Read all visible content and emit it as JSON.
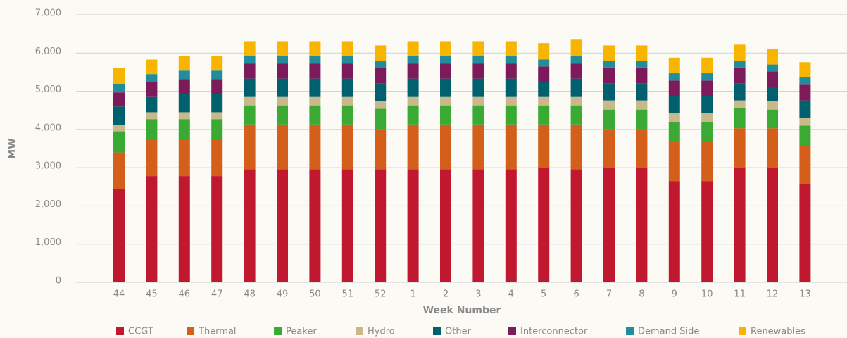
{
  "chart_data": {
    "type": "bar",
    "stacked": true,
    "ylabel": "MW",
    "xlabel": "Week Number",
    "categories": [
      "44",
      "45",
      "46",
      "47",
      "48",
      "49",
      "50",
      "51",
      "52",
      "1",
      "2",
      "3",
      "4",
      "5",
      "6",
      "7",
      "8",
      "9",
      "10",
      "11",
      "12",
      "13"
    ],
    "ylim": [
      0,
      7000
    ],
    "yticks": [
      0,
      {
        "value": 1000,
        "label": "1,000"
      },
      {
        "value": 2000,
        "label": "2,000"
      },
      {
        "value": 3000,
        "label": "3,000"
      },
      {
        "value": 4000,
        "label": "4,000"
      },
      {
        "value": 5000,
        "label": "5,000"
      },
      {
        "value": 6000,
        "label": "6,000"
      },
      {
        "value": 7000,
        "label": "7,000"
      }
    ],
    "grid": true,
    "legend": "bottom",
    "series": [
      {
        "name": "CCGT",
        "color": "#c0192f",
        "values": [
          2450,
          2780,
          2780,
          2780,
          2960,
          2960,
          2960,
          2960,
          2960,
          2960,
          2960,
          2960,
          2960,
          3000,
          2960,
          3000,
          3000,
          2650,
          2650,
          3000,
          3000,
          2570
        ]
      },
      {
        "name": "Thermal",
        "color": "#d35f1a",
        "values": [
          950,
          970,
          970,
          970,
          1170,
          1170,
          1170,
          1170,
          1040,
          1170,
          1170,
          1170,
          1170,
          1130,
          1170,
          1000,
          1000,
          1030,
          1030,
          1030,
          1030,
          990
        ]
      },
      {
        "name": "Peaker",
        "color": "#3aaa35",
        "values": [
          550,
          520,
          520,
          520,
          500,
          500,
          500,
          500,
          540,
          500,
          500,
          500,
          500,
          500,
          500,
          520,
          520,
          520,
          520,
          530,
          490,
          540
        ]
      },
      {
        "name": "Hydro",
        "color": "#c9b98a",
        "values": [
          170,
          180,
          180,
          180,
          220,
          220,
          220,
          220,
          200,
          220,
          220,
          220,
          220,
          220,
          220,
          240,
          240,
          220,
          220,
          200,
          220,
          200
        ]
      },
      {
        "name": "Other",
        "color": "#00606e",
        "values": [
          480,
          400,
          480,
          480,
          480,
          480,
          480,
          480,
          460,
          480,
          480,
          480,
          480,
          390,
          480,
          440,
          440,
          460,
          460,
          440,
          370,
          460
        ]
      },
      {
        "name": "Interconnector",
        "color": "#7d1a5a",
        "values": [
          370,
          400,
          390,
          390,
          390,
          390,
          390,
          390,
          410,
          390,
          390,
          390,
          390,
          410,
          390,
          420,
          420,
          400,
          400,
          420,
          410,
          410
        ]
      },
      {
        "name": "Demand Side",
        "color": "#1f8d9b",
        "values": [
          220,
          200,
          220,
          220,
          200,
          200,
          200,
          200,
          190,
          200,
          200,
          200,
          200,
          180,
          200,
          180,
          180,
          190,
          190,
          180,
          180,
          200
        ]
      },
      {
        "name": "Renewables",
        "color": "#f7b500",
        "values": [
          420,
          380,
          390,
          390,
          390,
          390,
          390,
          390,
          400,
          390,
          390,
          390,
          390,
          430,
          430,
          400,
          400,
          410,
          410,
          420,
          410,
          390
        ]
      }
    ]
  }
}
